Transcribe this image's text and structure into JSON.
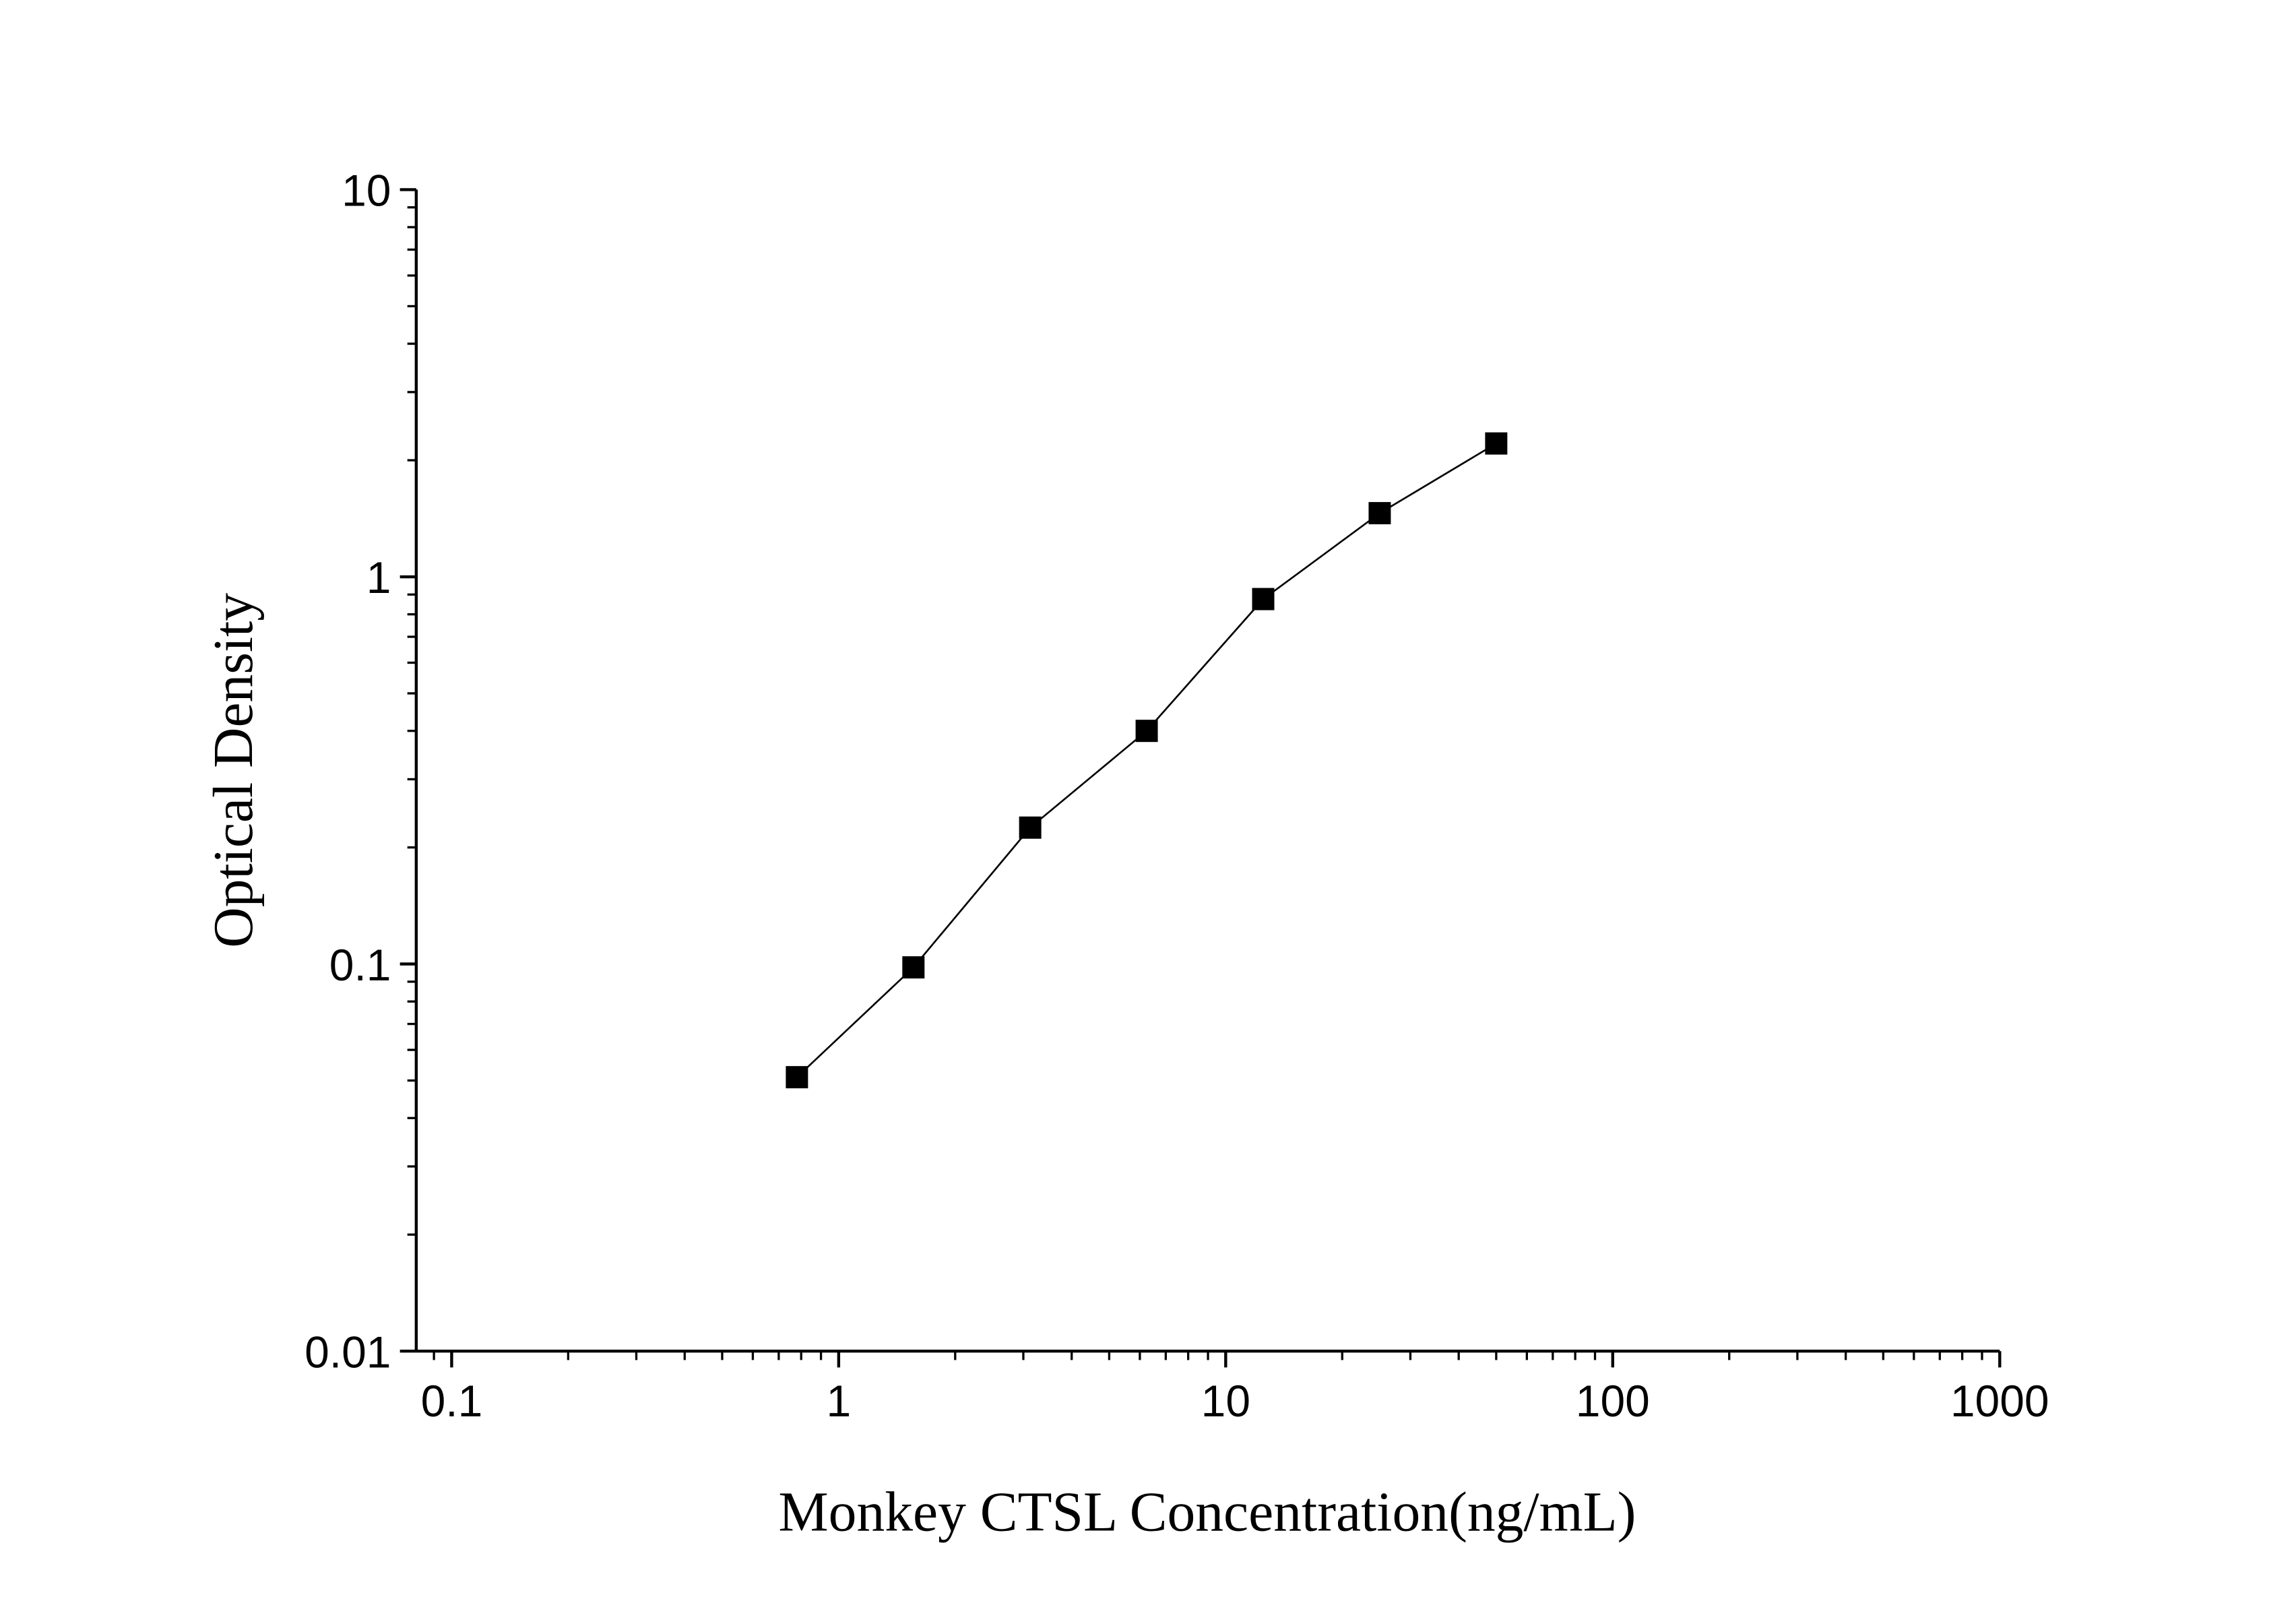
{
  "chart_data": {
    "type": "scatter",
    "xlabel": "Monkey CTSL Concentration(ng/mL)",
    "ylabel": "Optical Density",
    "x_scale": "log",
    "y_scale": "log",
    "xlim": [
      0.081,
      1000
    ],
    "ylim": [
      0.01,
      10
    ],
    "x_ticks": [
      0.1,
      1,
      10,
      100,
      1000
    ],
    "x_tick_labels": [
      "0.1",
      "1",
      "10",
      "100",
      "1000"
    ],
    "y_ticks": [
      0.01,
      0.1,
      1,
      10
    ],
    "y_tick_labels": [
      "0.01",
      "0.1",
      "1",
      "10"
    ],
    "grid": false,
    "marker": "square",
    "connect_line": true,
    "color": "#000000",
    "series": [
      {
        "x": [
          0.78,
          1.56,
          3.125,
          6.25,
          12.5,
          25,
          50
        ],
        "y": [
          0.051,
          0.098,
          0.225,
          0.4,
          0.876,
          1.46,
          2.21
        ]
      }
    ]
  }
}
